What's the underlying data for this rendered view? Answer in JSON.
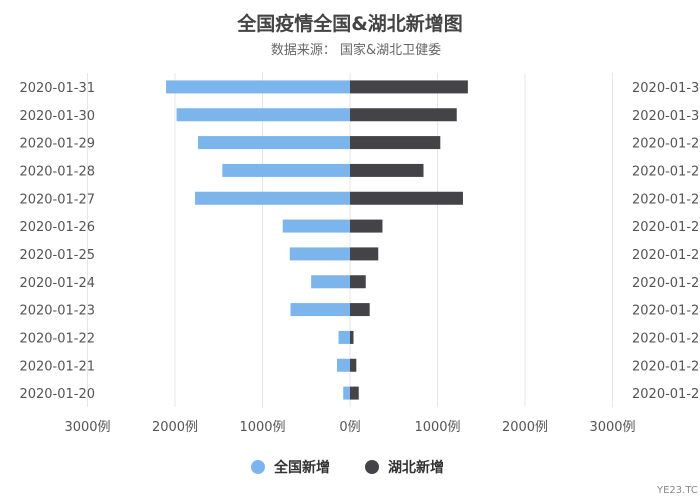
{
  "chart_data": {
    "type": "bar",
    "orientation": "horizontal-butterfly",
    "title": "全国疫情全国&湖北新增图",
    "subtitle": "数据来源： 国家&湖北卫健委",
    "categories": [
      "2020-01-31",
      "2020-01-30",
      "2020-01-29",
      "2020-01-28",
      "2020-01-27",
      "2020-01-26",
      "2020-01-25",
      "2020-01-24",
      "2020-01-23",
      "2020-01-22",
      "2020-01-21",
      "2020-01-20"
    ],
    "right_axis_labels": [
      "2020-01-3",
      "2020-01-3",
      "2020-01-2",
      "2020-01-2",
      "2020-01-2",
      "2020-01-2",
      "2020-01-2",
      "2020-01-2",
      "2020-01-2",
      "2020-01-2",
      "2020-01-2",
      "2020-01-2"
    ],
    "series": [
      {
        "name": "全国新增",
        "color": "#7cb5ec",
        "side": "left",
        "values": [
          2102,
          1982,
          1737,
          1459,
          1771,
          769,
          688,
          444,
          680,
          131,
          149,
          77
        ]
      },
      {
        "name": "湖北新增",
        "color": "#434348",
        "side": "right",
        "values": [
          1347,
          1220,
          1032,
          840,
          1291,
          371,
          323,
          180,
          225,
          40,
          72,
          100
        ]
      }
    ],
    "xlim": [
      -3000,
      3000
    ],
    "x_ticks": [
      "3000例",
      "2000例",
      "1000例",
      "0例",
      "1000例",
      "2000例",
      "3000例"
    ],
    "grid": "vertical",
    "legend_position": "bottom-center"
  },
  "watermark": "YE23.TC"
}
